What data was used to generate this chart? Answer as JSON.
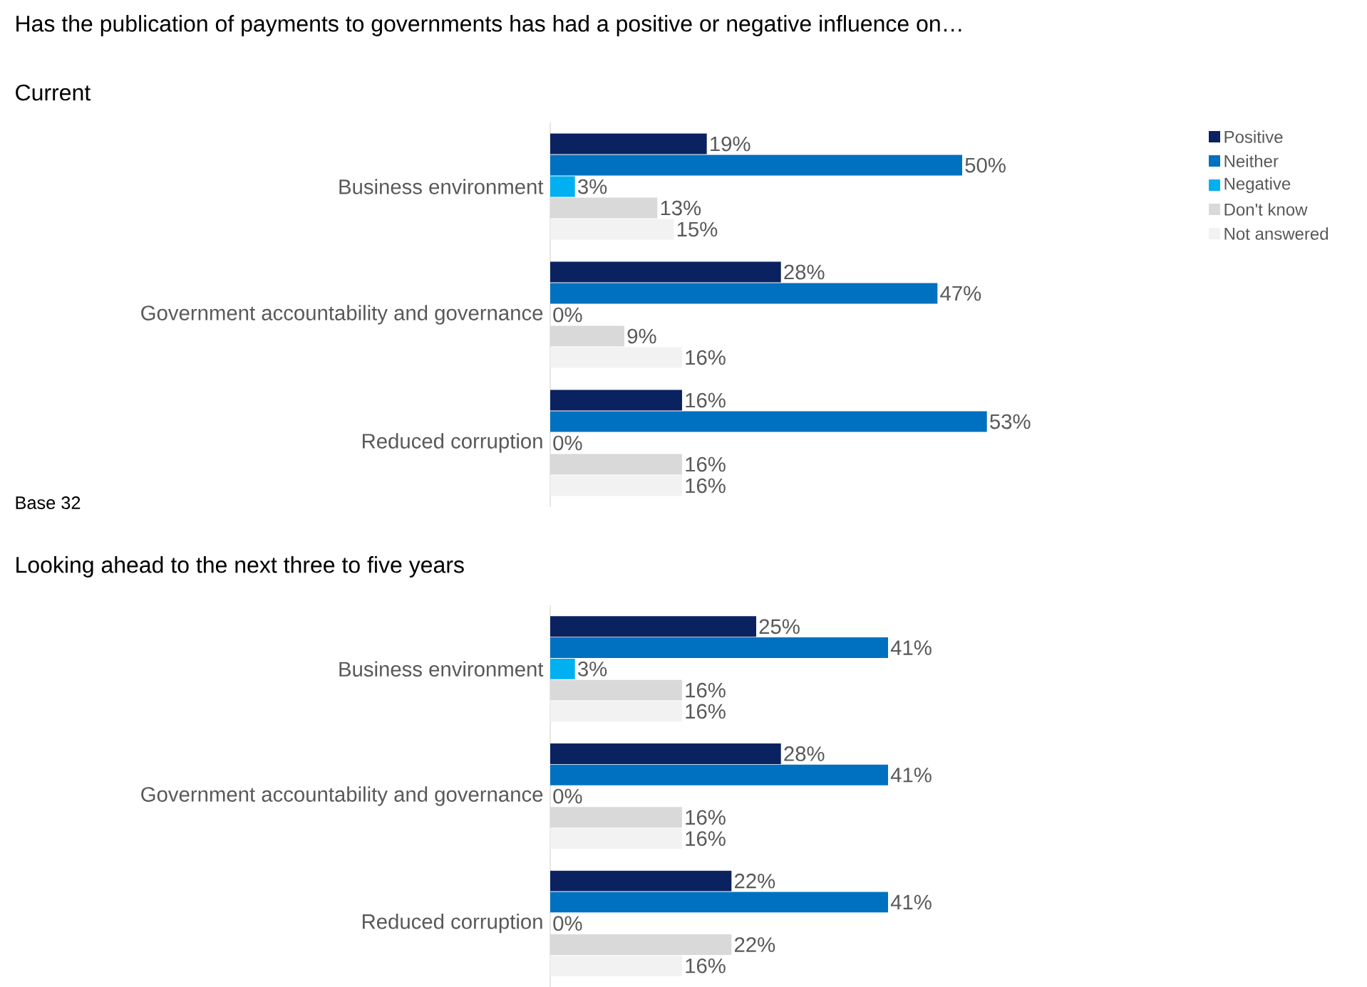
{
  "chart_data": [
    {
      "type": "bar",
      "orientation": "horizontal",
      "title": "Has the publication of payments to governments has had a positive or negative influence on…",
      "subtitle": "Current",
      "annotations": [
        "Base 32"
      ],
      "legend": "right",
      "categories": [
        "Business environment",
        "Government accountability and governance",
        "Reduced corruption"
      ],
      "series": [
        {
          "name": "Positive",
          "color": "#0b2260",
          "values": [
            19,
            28,
            16
          ],
          "value_labels": [
            "19%",
            "28%",
            "16%"
          ]
        },
        {
          "name": "Neither",
          "color": "#0070c0",
          "values": [
            50,
            47,
            53
          ],
          "value_labels": [
            "50%",
            "47%",
            "53%"
          ]
        },
        {
          "name": "Negative",
          "color": "#00b0f0",
          "values": [
            3,
            0,
            0
          ],
          "value_labels": [
            "3%",
            "0%",
            "0%"
          ]
        },
        {
          "name": "Don't know",
          "color": "#d9d9d9",
          "values": [
            13,
            9,
            16
          ],
          "value_labels": [
            "13%",
            "9%",
            "16%"
          ]
        },
        {
          "name": "Not answered",
          "color": "#f2f2f2",
          "values": [
            15,
            16,
            16
          ],
          "value_labels": [
            "15%",
            "16%",
            "16%"
          ]
        }
      ]
    },
    {
      "type": "bar",
      "orientation": "horizontal",
      "title": "Looking ahead to the next three to five years",
      "categories": [
        "Business environment",
        "Government accountability and governance",
        "Reduced corruption"
      ],
      "series": [
        {
          "color": "#0b2260",
          "values": [
            25,
            28,
            22
          ],
          "value_labels": [
            "25%",
            "28%",
            "22%"
          ]
        },
        {
          "color": "#0070c0",
          "values": [
            41,
            41,
            41
          ],
          "value_labels": [
            "41%",
            "41%",
            "41%"
          ]
        },
        {
          "color": "#00b0f0",
          "values": [
            3,
            0,
            0
          ],
          "value_labels": [
            "3%",
            "0%",
            "0%"
          ]
        },
        {
          "color": "#d9d9d9",
          "values": [
            16,
            16,
            22
          ],
          "value_labels": [
            "16%",
            "16%",
            "22%"
          ]
        },
        {
          "color": "#f2f2f2",
          "values": [
            16,
            16,
            16
          ],
          "value_labels": [
            "16%",
            "16%",
            "16%"
          ]
        }
      ]
    }
  ]
}
